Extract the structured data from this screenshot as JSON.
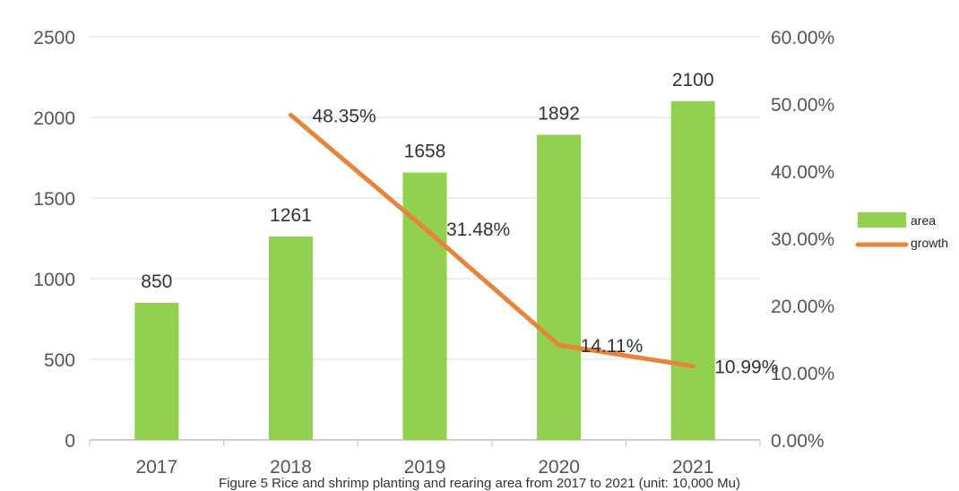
{
  "chart_data": {
    "type": "bar",
    "categories": [
      "2017",
      "2018",
      "2019",
      "2020",
      "2021"
    ],
    "series": [
      {
        "name": "area",
        "type": "bar",
        "axis": "left",
        "color": "#92d050",
        "values": [
          850,
          1261,
          1658,
          1892,
          2100
        ],
        "labels": [
          "850",
          "1261",
          "1658",
          "1892",
          "2100"
        ]
      },
      {
        "name": "growth",
        "type": "line",
        "axis": "right",
        "color": "#e8833a",
        "values": [
          null,
          48.35,
          31.48,
          14.11,
          10.99
        ],
        "labels": [
          "",
          "48.35%",
          "31.48%",
          "14.11%",
          "10.99%"
        ]
      }
    ],
    "y_left": {
      "range": [
        0,
        2500
      ],
      "ticks": [
        "0",
        "500",
        "1000",
        "1500",
        "2000",
        "2500"
      ]
    },
    "y_right": {
      "range": [
        0,
        60
      ],
      "ticks": [
        "0.00%",
        "10.00%",
        "20.00%",
        "30.00%",
        "40.00%",
        "50.00%",
        "60.00%"
      ]
    },
    "grid": true,
    "legend_position": "right",
    "caption": "Figure 5 Rice and shrimp planting and rearing area from 2017 to 2021 (unit: 10,000 Mu)"
  }
}
